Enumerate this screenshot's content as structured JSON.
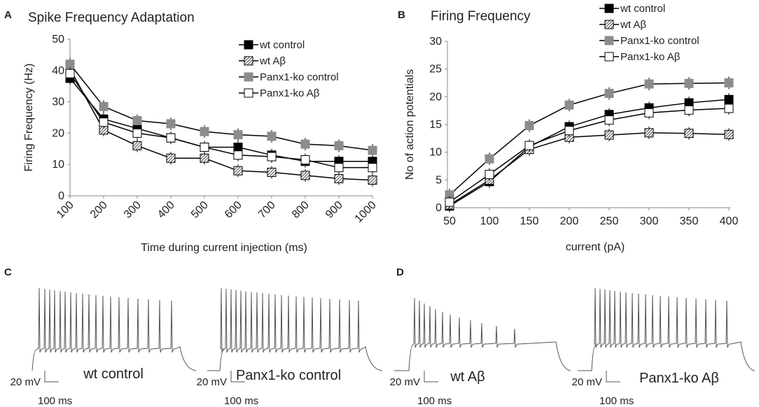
{
  "panel_labels": {
    "a": "A",
    "b": "B",
    "c": "C",
    "d": "D"
  },
  "chart_data": [
    {
      "id": "A",
      "type": "line",
      "title": "Spike Frequency Adaptation",
      "xlabel": "Time during current injection (ms)",
      "ylabel": "Firing Frequency (Hz)",
      "categories": [
        "100",
        "200",
        "300",
        "400",
        "500",
        "600",
        "700",
        "800",
        "900",
        "1000"
      ],
      "ylim": [
        0,
        50
      ],
      "yticks": [
        "0",
        "10",
        "20",
        "30",
        "40",
        "50"
      ],
      "series": [
        {
          "name": "wt control",
          "values": [
            37.5,
            24.5,
            21.5,
            18.5,
            15.5,
            15.5,
            13,
            11,
            11,
            11
          ]
        },
        {
          "name": "wt Aβ",
          "values": [
            40.5,
            21,
            16,
            12,
            12,
            8,
            7.5,
            6.5,
            5.5,
            5
          ]
        },
        {
          "name": "Panx1-ko control",
          "values": [
            42,
            28.5,
            24,
            23,
            20.5,
            19.5,
            19,
            16.5,
            16,
            14.5
          ]
        },
        {
          "name": "Panx1-ko Aβ",
          "values": [
            39,
            23.5,
            20,
            18.5,
            15.5,
            13,
            12.5,
            11.5,
            9,
            9
          ]
        }
      ]
    },
    {
      "id": "B",
      "type": "line",
      "title": "Firing  Frequency",
      "xlabel": "current (pA)",
      "ylabel": "No of action potentials",
      "categories": [
        "50",
        "100",
        "150",
        "200",
        "250",
        "300",
        "350",
        "400"
      ],
      "ylim": [
        0,
        30
      ],
      "yticks": [
        "0",
        "5",
        "10",
        "15",
        "20",
        "25",
        "30"
      ],
      "series": [
        {
          "name": "wt control",
          "values": [
            0.3,
            4.7,
            11,
            14.6,
            16.8,
            18,
            18.9,
            19.5
          ]
        },
        {
          "name": "wt Aβ",
          "values": [
            0.5,
            5,
            10.5,
            12.7,
            13.1,
            13.5,
            13.4,
            13.2
          ]
        },
        {
          "name": "Panx1-ko control",
          "values": [
            2.3,
            8.8,
            14.8,
            18.5,
            20.6,
            22.3,
            22.4,
            22.5
          ]
        },
        {
          "name": "Panx1-ko Aβ",
          "values": [
            1,
            6,
            11.2,
            13.9,
            15.8,
            17.1,
            17.6,
            17.9
          ]
        }
      ]
    }
  ],
  "traces": [
    {
      "label": "wt control",
      "scale_mv": "20 mV",
      "scale_ms": "100 ms"
    },
    {
      "label": "Panx1-ko control",
      "scale_mv": "20 mV",
      "scale_ms": "100 ms"
    },
    {
      "label": "wt Aβ",
      "scale_mv": "20 mV",
      "scale_ms": "100 ms"
    },
    {
      "label": "Panx1-ko Aβ",
      "scale_mv": "20 mV",
      "scale_ms": "100 ms"
    }
  ],
  "colors": {
    "black": "#000000",
    "gray": "#8c8c8c",
    "axis": "#888888",
    "trace": "#555555"
  }
}
